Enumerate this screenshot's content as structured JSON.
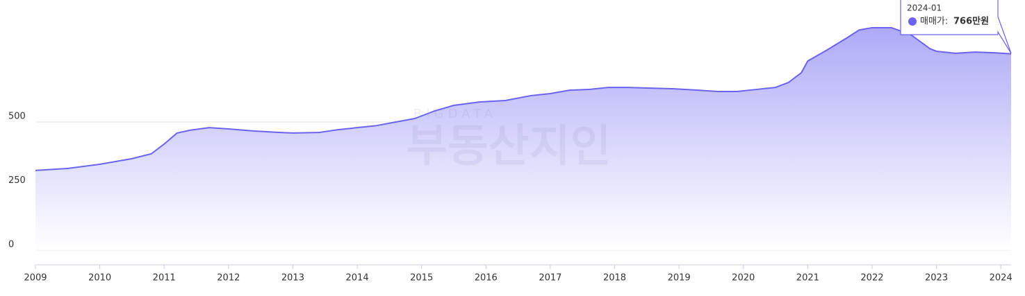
{
  "chart_data": {
    "type": "area",
    "x": [
      2009.0,
      2009.5,
      2010.0,
      2010.5,
      2010.8,
      2011.0,
      2011.2,
      2011.4,
      2011.7,
      2012.0,
      2012.4,
      2012.8,
      2013.0,
      2013.4,
      2013.7,
      2014.0,
      2014.3,
      2014.6,
      2014.9,
      2015.2,
      2015.5,
      2015.9,
      2016.3,
      2016.7,
      2017.0,
      2017.3,
      2017.6,
      2017.9,
      2018.2,
      2018.6,
      2018.9,
      2019.3,
      2019.6,
      2019.9,
      2020.2,
      2020.5,
      2020.7,
      2020.9,
      2021.0,
      2021.3,
      2021.6,
      2021.8,
      2022.0,
      2022.3,
      2022.6,
      2022.9,
      2023.0,
      2023.3,
      2023.6,
      2023.9,
      2024.16
    ],
    "series": [
      {
        "name": "매매가",
        "color": "#6b63f0",
        "values": [
          311,
          319,
          335,
          357,
          376,
          414,
          457,
          468,
          478,
          473,
          465,
          459,
          457,
          459,
          470,
          478,
          486,
          500,
          514,
          543,
          565,
          578,
          584,
          603,
          611,
          624,
          627,
          635,
          635,
          632,
          630,
          624,
          619,
          619,
          627,
          635,
          654,
          692,
          738,
          781,
          827,
          859,
          868,
          868,
          841,
          786,
          776,
          768,
          773,
          770,
          766
        ]
      }
    ],
    "xlim": [
      2009,
      2024.16
    ],
    "xticks": [
      2009,
      2010,
      2011,
      2012,
      2013,
      2014,
      2015,
      2016,
      2017,
      2018,
      2019,
      2020,
      2021,
      2022,
      2023,
      2024
    ],
    "ylim": [
      -57,
      976
    ],
    "yticks": [
      0,
      250,
      500
    ],
    "grid": true,
    "tooltip": {
      "date": "2024-01",
      "label": "매매가:",
      "value_label": "766만원"
    },
    "watermark": {
      "top": "BIGDATA",
      "main": "부동산지인"
    }
  }
}
